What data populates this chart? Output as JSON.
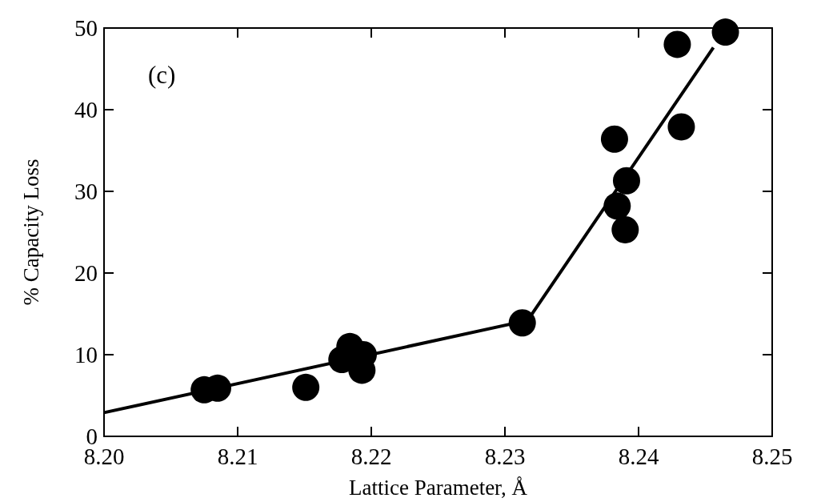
{
  "chart_data": {
    "type": "scatter",
    "xlabel": "Lattice Parameter, Å",
    "ylabel": "% Capacity Loss",
    "annotations": [
      "(c)"
    ],
    "xlim": [
      8.2,
      8.25
    ],
    "xticks": [
      {
        "value": 8.2,
        "label": "8.20"
      },
      8.21,
      8.22,
      8.23,
      8.24,
      {
        "value": 8.25,
        "label": "8.25"
      }
    ],
    "ylim": [
      0,
      50
    ],
    "yticks": [
      0,
      10,
      20,
      30,
      40,
      50
    ],
    "grid": false,
    "marker": "circle",
    "series": [
      {
        "color": "#000000",
        "x": [
          8.2075,
          8.2085,
          8.2151,
          8.2178,
          8.2184,
          8.2194,
          8.2193,
          8.2313,
          8.2382,
          8.2384,
          8.2391,
          8.239,
          8.2429,
          8.2432,
          8.2465
        ],
        "values": [
          5.7,
          5.9,
          6.0,
          9.4,
          11.0,
          10.0,
          8.1,
          13.9,
          36.4,
          28.2,
          31.3,
          25.3,
          48.0,
          37.9,
          49.5
        ]
      },
      {
        "type": "line",
        "color": "#000000",
        "marker": "none",
        "line_style": "solid",
        "x": [
          8.2,
          8.2317,
          8.2456
        ],
        "values": [
          2.9,
          14.2,
          47.6
        ]
      }
    ]
  }
}
